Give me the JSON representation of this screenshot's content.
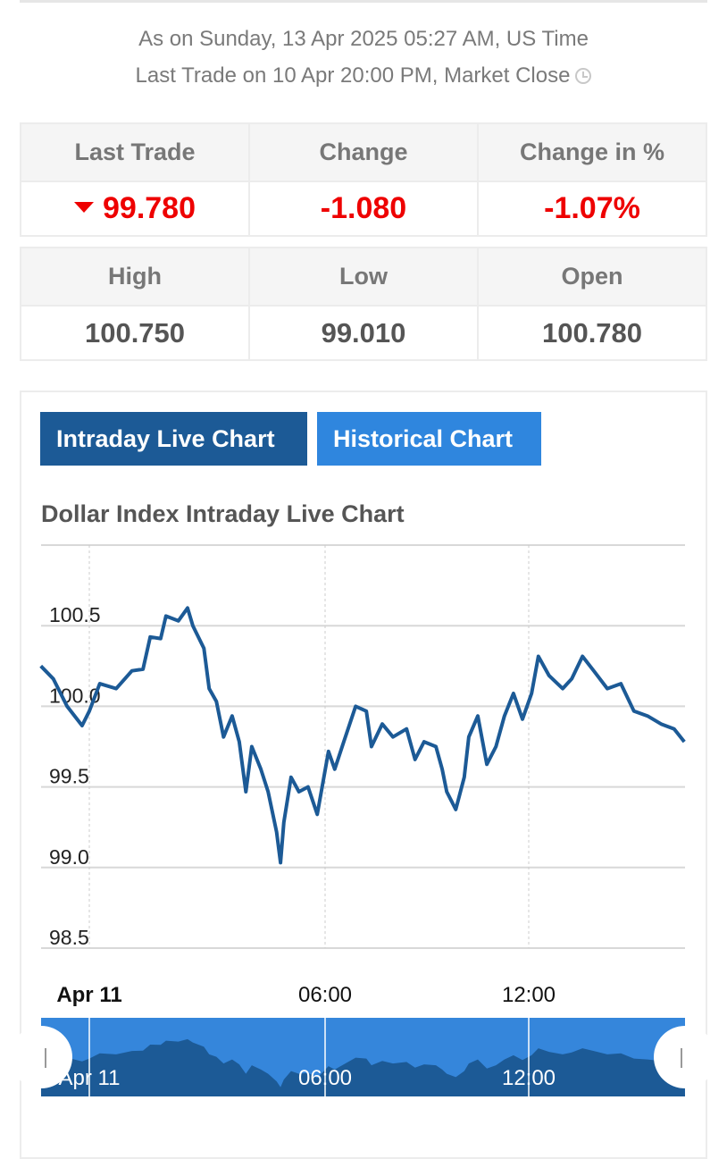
{
  "header": {
    "as_on": "As on Sunday, 13 Apr 2025 05:27 AM, US Time",
    "last_trade_info": "Last Trade on 10 Apr 20:00 PM, Market Close",
    "clock_icon": "clock-icon"
  },
  "quote": {
    "headers": [
      "Last Trade",
      "Change",
      "Change in %"
    ],
    "last_trade": "99.780",
    "change": "-1.080",
    "change_pct": "-1.07%",
    "direction": "down"
  },
  "range": {
    "headers": [
      "High",
      "Low",
      "Open"
    ],
    "high": "100.750",
    "low": "99.010",
    "open": "100.780"
  },
  "tabs": {
    "intraday": "Intraday Live Chart",
    "historical": "Historical Chart",
    "active": "intraday"
  },
  "colors": {
    "down": "#e00000",
    "line": "#1c5a96",
    "tab_active": "#1c5a96",
    "tab_inactive": "#2f86de",
    "navigator_bg": "#3586db"
  },
  "chart_data": {
    "type": "line",
    "title": "Dollar Index Intraday Live Chart",
    "ylim": [
      98.5,
      101.0
    ],
    "yticks": [
      "100.5",
      "100.0",
      "99.5",
      "99.0",
      "98.5"
    ],
    "xticks": [
      "Apr 11",
      "06:00",
      "12:00"
    ],
    "navigator_labels": [
      "Apr 11",
      "06:00",
      "12:00"
    ],
    "grid": true,
    "x": [
      "22:46",
      "23:05",
      "23:26",
      "23:49",
      "00:00",
      "00:16",
      "00:41",
      "01:05",
      "01:22",
      "01:33",
      "01:49",
      "01:57",
      "02:16",
      "02:30",
      "02:38",
      "02:55",
      "03:03",
      "03:14",
      "03:25",
      "03:38",
      "03:49",
      "03:59",
      "04:08",
      "04:22",
      "04:33",
      "04:46",
      "04:52",
      "04:57",
      "05:08",
      "05:20",
      "05:34",
      "05:48",
      "06:06",
      "06:17",
      "06:33",
      "06:54",
      "07:13",
      "07:22",
      "07:41",
      "08:00",
      "08:24",
      "08:39",
      "08:55",
      "09:16",
      "09:27",
      "09:35",
      "09:51",
      "10:06",
      "10:14",
      "10:30",
      "10:46",
      "11:02",
      "11:17",
      "11:33",
      "11:49",
      "12:05",
      "12:17",
      "12:36",
      "13:00",
      "13:16",
      "13:35",
      "13:55",
      "14:19",
      "14:43",
      "15:06",
      "15:30",
      "15:54",
      "16:17",
      "16:35"
    ],
    "y": [
      100.25,
      100.17,
      100.0,
      99.88,
      99.97,
      100.14,
      100.11,
      100.22,
      100.23,
      100.43,
      100.42,
      100.56,
      100.53,
      100.61,
      100.5,
      100.36,
      100.11,
      100.03,
      99.81,
      99.94,
      99.78,
      99.47,
      99.75,
      99.61,
      99.47,
      99.22,
      99.03,
      99.28,
      99.56,
      99.47,
      99.5,
      99.33,
      99.72,
      99.61,
      99.78,
      100.0,
      99.97,
      99.75,
      99.89,
      99.81,
      99.86,
      99.67,
      99.78,
      99.75,
      99.61,
      99.47,
      99.36,
      99.56,
      99.81,
      99.94,
      99.64,
      99.75,
      99.94,
      100.08,
      99.92,
      100.08,
      100.31,
      100.19,
      100.11,
      100.17,
      100.31,
      100.22,
      100.11,
      100.14,
      99.97,
      99.94,
      99.89,
      99.86,
      99.78
    ]
  }
}
